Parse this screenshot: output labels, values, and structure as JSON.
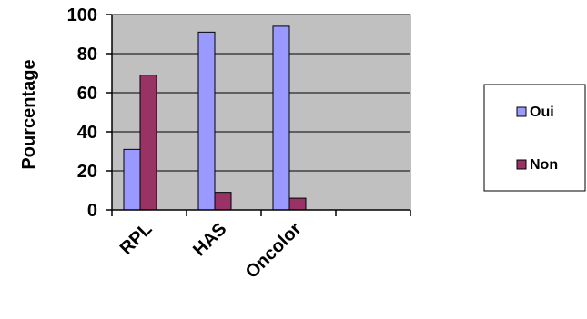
{
  "chart_data": {
    "type": "bar",
    "title": "",
    "xlabel": "",
    "ylabel": "Pourcentage",
    "categories": [
      "RPL",
      "HAS",
      "Oncolor",
      ""
    ],
    "series": [
      {
        "name": "Oui",
        "values": [
          31,
          91,
          94,
          null
        ],
        "color": "#9999ff"
      },
      {
        "name": "Non",
        "values": [
          69,
          9,
          6,
          null
        ],
        "color": "#993366"
      }
    ],
    "ylim": [
      0,
      100
    ],
    "yticks": [
      0,
      20,
      40,
      60,
      80,
      100
    ],
    "ytick_labels": [
      "0",
      "20",
      "40",
      "60",
      "80",
      "100"
    ],
    "grid": true,
    "plot_background": "#c0c0c0",
    "legend_position": "right"
  }
}
